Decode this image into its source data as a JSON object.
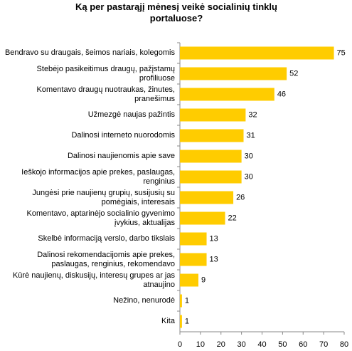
{
  "chart_data": {
    "type": "barh",
    "title": "Ką per pastarąjį mėnesį veikė socialinių tinklų portaluose?",
    "categories": [
      "Bendravo su draugais, šeimos nariais, kolegomis",
      "Stebėjo pasikeitimus draugų, pažįstamų profiliuose",
      "Komentavo draugų nuotraukas, žinutes, pranešimus",
      "Užmezgė naujas pažintis",
      "Dalinosi interneto nuorodomis",
      "Dalinosi naujienomis apie save",
      "Ieškojo informacijos apie prekes, paslaugas, renginius",
      "Jungėsi prie naujienų grupių, susijusių su pomėgiais, interesais",
      "Komentavo, aptarinėjo socialinio gyvenimo įvykius, aktualijas",
      "Skelbė informaciją verslo, darbo tikslais",
      "Dalinosi rekomendacijomis apie prekes, paslaugas, renginius, rekomendavo",
      "Kūrė naujienų, diskusijų, interesų grupes ar jas atnaujino",
      "Nežino, nenurodė",
      "Kita"
    ],
    "values": [
      75,
      52,
      46,
      32,
      31,
      30,
      30,
      26,
      22,
      13,
      13,
      9,
      1,
      1
    ],
    "color": "#ffcc00",
    "xlim": [
      0,
      80
    ],
    "xticks": [
      0,
      10,
      20,
      30,
      40,
      50,
      60,
      70,
      80
    ],
    "grid": false
  }
}
